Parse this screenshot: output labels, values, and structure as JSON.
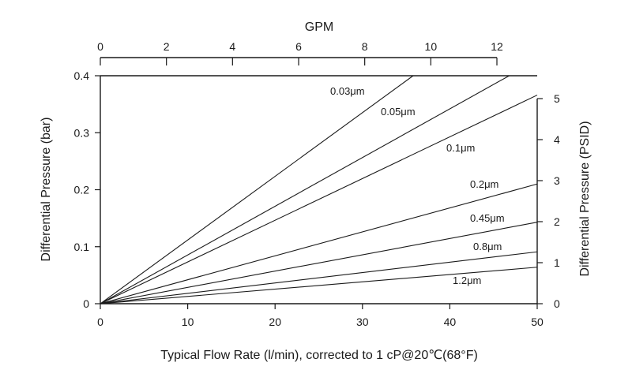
{
  "chart_data": {
    "type": "line",
    "xlabel": "Typical Flow Rate (l/min), corrected to 1 cP@20℃(68°F)",
    "ylabel": "Differential Pressure (bar)",
    "x2label": "GPM",
    "y2label": "Differential Pressure (PSID)",
    "xlim": [
      0,
      50
    ],
    "ylim": [
      0,
      0.4
    ],
    "x2lim": [
      0,
      12
    ],
    "y2lim": [
      0,
      5
    ],
    "xticks": [
      "0",
      "10",
      "20",
      "30",
      "40",
      "50"
    ],
    "yticks": [
      "0",
      "0.1",
      "0.2",
      "0.3",
      "0.4"
    ],
    "x2ticks": [
      "0",
      "2",
      "4",
      "6",
      "8",
      "10",
      "12"
    ],
    "y2ticks": [
      "0",
      "1",
      "2",
      "3",
      "4",
      "5"
    ],
    "grid": false,
    "series": [
      {
        "name": "0.03μm",
        "x": [
          0,
          35.8
        ],
        "y": [
          0,
          0.4
        ]
      },
      {
        "name": "0.05μm",
        "x": [
          0,
          46.8
        ],
        "y": [
          0,
          0.4
        ]
      },
      {
        "name": "0.1μm",
        "x": [
          0,
          50
        ],
        "y": [
          0,
          0.366
        ]
      },
      {
        "name": "0.2μm",
        "x": [
          0,
          50
        ],
        "y": [
          0,
          0.21
        ]
      },
      {
        "name": "0.45μm",
        "x": [
          0,
          50
        ],
        "y": [
          0,
          0.143
        ]
      },
      {
        "name": "0.8μm",
        "x": [
          0,
          50
        ],
        "y": [
          0,
          0.091
        ]
      },
      {
        "name": "1.2μm",
        "x": [
          0,
          50
        ],
        "y": [
          0,
          0.064
        ]
      }
    ]
  }
}
